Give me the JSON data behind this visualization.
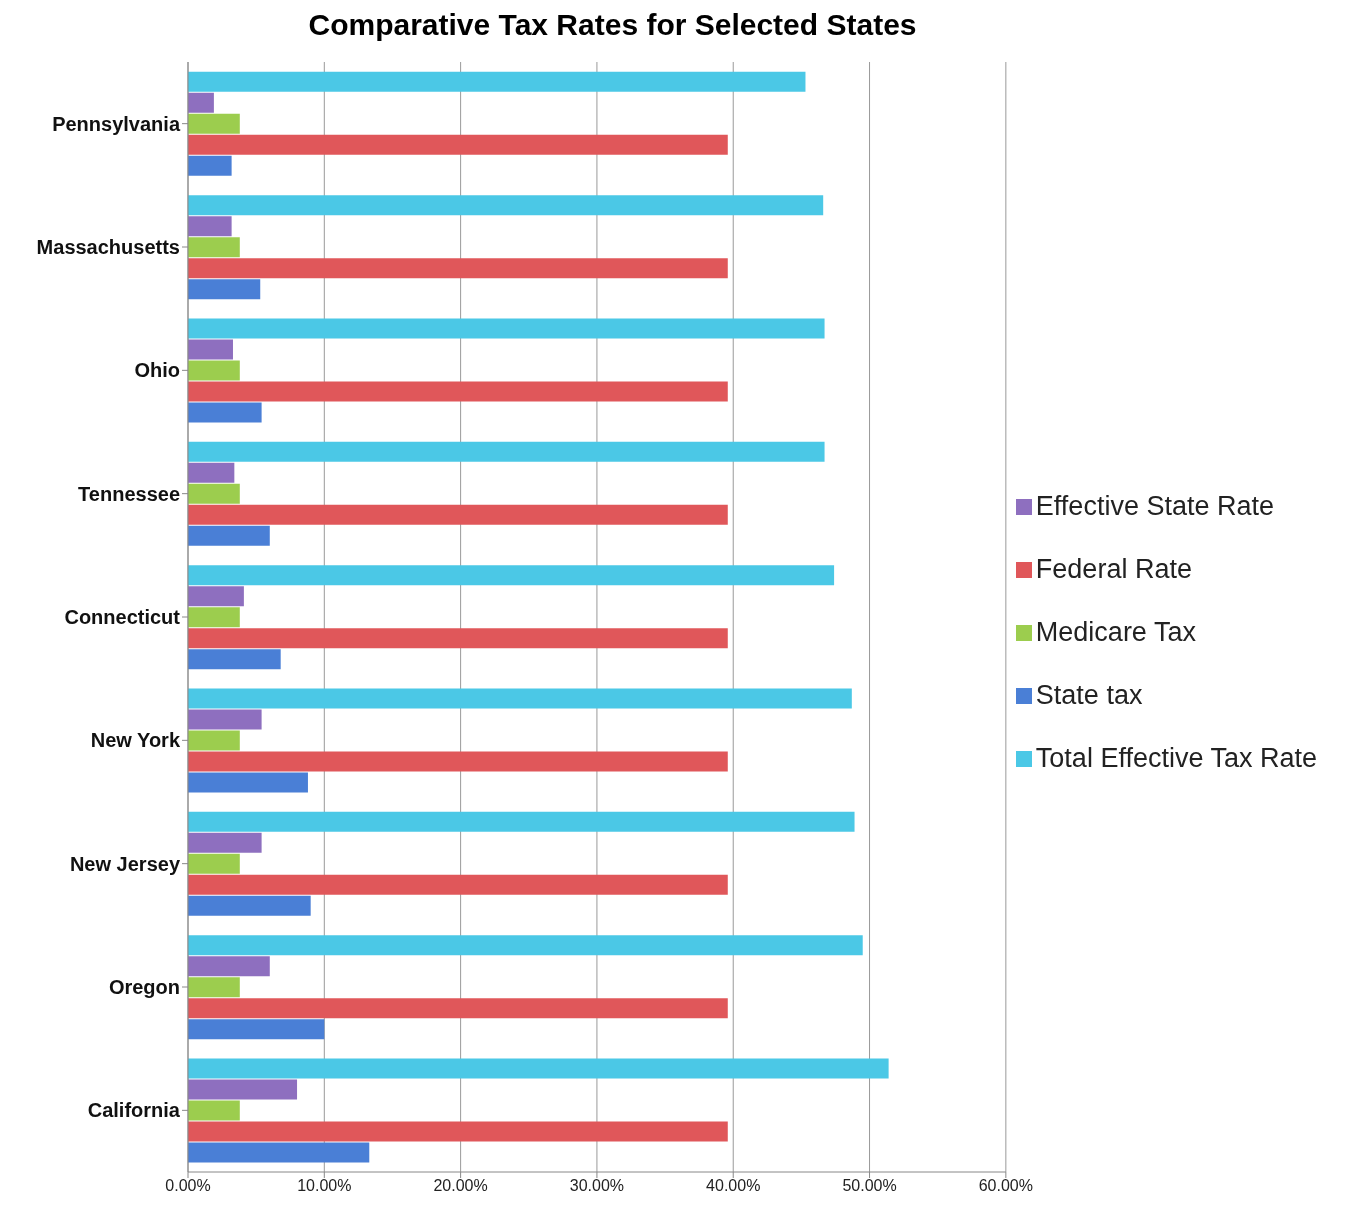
{
  "chart_data": {
    "type": "bar",
    "orientation": "horizontal",
    "title": "Comparative Tax Rates for Selected States",
    "categories": [
      "Pennsylvania",
      "Massachusetts",
      "Ohio",
      "Tennessee",
      "Connecticut",
      "New York",
      "New Jersey",
      "Oregon",
      "California"
    ],
    "series": [
      {
        "name": "Total Effective Tax Rate",
        "color": "#4bc8e6",
        "values": [
          45.3,
          46.6,
          46.7,
          46.7,
          47.4,
          48.7,
          48.9,
          49.5,
          51.4
        ]
      },
      {
        "name": "Effective State Rate",
        "color": "#8e6fbf",
        "values": [
          1.9,
          3.2,
          3.3,
          3.4,
          4.1,
          5.4,
          5.4,
          6.0,
          8.0
        ]
      },
      {
        "name": "Medicare Tax",
        "color": "#9ccd4e",
        "values": [
          3.8,
          3.8,
          3.8,
          3.8,
          3.8,
          3.8,
          3.8,
          3.8,
          3.8
        ]
      },
      {
        "name": "Federal Rate",
        "color": "#e0575a",
        "values": [
          39.6,
          39.6,
          39.6,
          39.6,
          39.6,
          39.6,
          39.6,
          39.6,
          39.6
        ]
      },
      {
        "name": "State tax",
        "color": "#4a7fd6",
        "values": [
          3.2,
          5.3,
          5.4,
          6.0,
          6.8,
          8.8,
          9.0,
          10.0,
          13.3
        ]
      }
    ],
    "xlim": [
      0,
      60
    ],
    "xticks": [
      {
        "value": 0,
        "label": "0.00%"
      },
      {
        "value": 10,
        "label": "10.00%"
      },
      {
        "value": 20,
        "label": "20.00%"
      },
      {
        "value": 30,
        "label": "30.00%"
      },
      {
        "value": 40,
        "label": "40.00%"
      },
      {
        "value": 50,
        "label": "50.00%"
      },
      {
        "value": 60,
        "label": "60.00%"
      }
    ],
    "grid": "x",
    "legend": "right"
  }
}
